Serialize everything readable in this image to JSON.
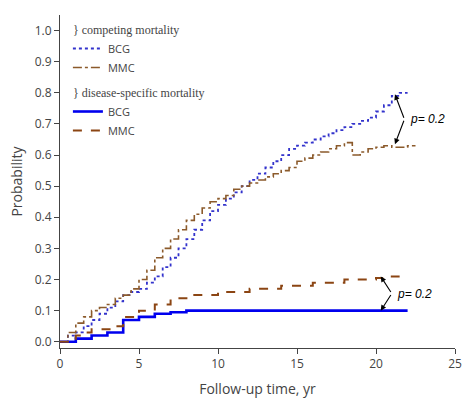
{
  "chart_data": {
    "type": "line",
    "xlabel": "Follow-up time, yr",
    "ylabel": "Probability",
    "series": [
      {
        "name": "BCG",
        "color": "#3333cc",
        "line_style": "dotted",
        "x": [
          0,
          0.5,
          1.0,
          1.5,
          2.0,
          2.5,
          3.0,
          3.5,
          4.0,
          4.5,
          5.0,
          5.5,
          6.0,
          6.5,
          7.0,
          7.5,
          8.0,
          8.5,
          9.0,
          9.5,
          10.0,
          10.5,
          11.0,
          11.5,
          12.0,
          12.5,
          13.0,
          13.5,
          14.0,
          14.5,
          15.0,
          15.5,
          16.0,
          16.5,
          17.0,
          17.5,
          18.0,
          18.5,
          19.0,
          19.5,
          20.0,
          20.5,
          21.0,
          21.5,
          22.0
        ],
        "values": [
          0,
          0.02,
          0.03,
          0.05,
          0.07,
          0.09,
          0.11,
          0.13,
          0.15,
          0.16,
          0.17,
          0.19,
          0.21,
          0.24,
          0.27,
          0.3,
          0.33,
          0.36,
          0.39,
          0.42,
          0.44,
          0.46,
          0.48,
          0.5,
          0.52,
          0.54,
          0.56,
          0.58,
          0.6,
          0.62,
          0.63,
          0.64,
          0.65,
          0.66,
          0.67,
          0.68,
          0.69,
          0.7,
          0.71,
          0.72,
          0.74,
          0.76,
          0.79,
          0.8,
          0.8
        ]
      },
      {
        "name": "MMC",
        "color": "#8B5A2B",
        "line_style": "dashdot",
        "x": [
          0,
          0.5,
          1.0,
          1.5,
          2.0,
          2.5,
          3.0,
          3.5,
          4.0,
          4.5,
          5.0,
          5.5,
          6.0,
          6.5,
          7.0,
          7.5,
          8.0,
          8.5,
          9.0,
          9.5,
          10.0,
          10.5,
          11.0,
          11.5,
          12.0,
          12.5,
          13.0,
          13.5,
          14.0,
          14.5,
          15.0,
          15.5,
          16.0,
          16.5,
          17.0,
          17.5,
          18.0,
          18.5,
          19.0,
          19.5,
          20.0,
          20.5,
          21.0,
          21.5,
          22.0,
          22.5
        ],
        "values": [
          0,
          0.03,
          0.06,
          0.08,
          0.1,
          0.11,
          0.12,
          0.14,
          0.15,
          0.17,
          0.2,
          0.23,
          0.27,
          0.3,
          0.33,
          0.36,
          0.39,
          0.41,
          0.43,
          0.45,
          0.46,
          0.47,
          0.49,
          0.5,
          0.51,
          0.52,
          0.53,
          0.54,
          0.55,
          0.56,
          0.58,
          0.59,
          0.6,
          0.61,
          0.62,
          0.63,
          0.64,
          0.6,
          0.61,
          0.62,
          0.625,
          0.63,
          0.625,
          0.625,
          0.63,
          0.63
        ]
      },
      {
        "name": "BCG",
        "color": "#0000ee",
        "line_style": "solid",
        "x": [
          0,
          1.0,
          2.0,
          3.0,
          4.0,
          5.0,
          6.0,
          7.0,
          8.0,
          22.0
        ],
        "values": [
          0,
          0.01,
          0.02,
          0.03,
          0.07,
          0.08,
          0.09,
          0.095,
          0.1,
          0.1
        ]
      },
      {
        "name": "MMC",
        "color": "#8B4513",
        "line_style": "dashed",
        "x": [
          0,
          0.5,
          1.0,
          1.5,
          2.0,
          3.0,
          3.5,
          4.0,
          5.0,
          6.0,
          7.0,
          8.0,
          10.0,
          12.0,
          14.0,
          16.0,
          18.0,
          20.0,
          21.0,
          22.0
        ],
        "values": [
          0,
          0.01,
          0.02,
          0.03,
          0.04,
          0.04,
          0.05,
          0.08,
          0.1,
          0.12,
          0.14,
          0.15,
          0.16,
          0.17,
          0.18,
          0.19,
          0.2,
          0.205,
          0.21,
          0.21
        ]
      }
    ],
    "annotations": [
      "} competing mortality",
      "} disease-specific mortality",
      "p= 0.2",
      "p= 0.2"
    ],
    "xlim": [
      0,
      25
    ],
    "ylim": [
      -0.02,
      1.05
    ],
    "xticks": [
      0,
      5,
      10,
      15,
      20,
      25
    ],
    "yticks": [
      {
        "value": 0.0,
        "label": "0.0"
      },
      0.1,
      0.2,
      0.3,
      0.4,
      0.5,
      0.6,
      0.7,
      0.8,
      0.9,
      {
        "value": 1.0,
        "label": "1.0"
      }
    ],
    "grid": false,
    "legend": "upper left"
  }
}
